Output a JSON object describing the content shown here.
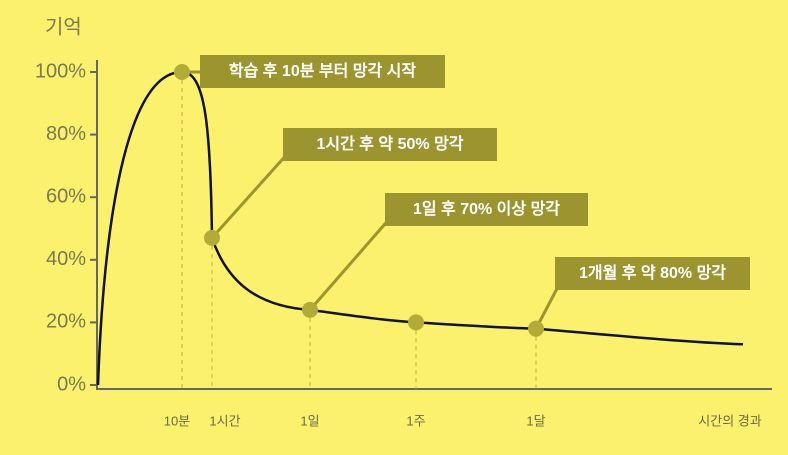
{
  "chart_data": {
    "type": "line",
    "y_label": "기억",
    "x_label": "시간의 경과",
    "categories": [
      null,
      "10분",
      "1시간",
      "1일",
      "1주",
      "1달",
      null
    ],
    "series": [
      {
        "name": null,
        "color": "#111111",
        "values": [
          0,
          100,
          47,
          24,
          20,
          18,
          13
        ]
      }
    ],
    "marker_color": "#b3ab38",
    "annotations": [
      {
        "category": 1,
        "text": "학습 후 10분 부터 망각 시작"
      },
      {
        "category": 2,
        "text": "1시간 후 약 50% 망각"
      },
      {
        "category": 3,
        "text": "1일 후 70% 이상 망각"
      },
      {
        "category": 5,
        "text": "1개월 후 약 80% 망각"
      }
    ],
    "ylim": [
      0,
      100
    ],
    "yticks": [
      {
        "value": 0,
        "label": "0%"
      },
      {
        "value": 20,
        "label": "20%"
      },
      {
        "value": 40,
        "label": "40%"
      },
      {
        "value": 60,
        "label": "60%"
      },
      {
        "value": 80,
        "label": "80%"
      },
      {
        "value": 100,
        "label": "100%"
      }
    ]
  }
}
